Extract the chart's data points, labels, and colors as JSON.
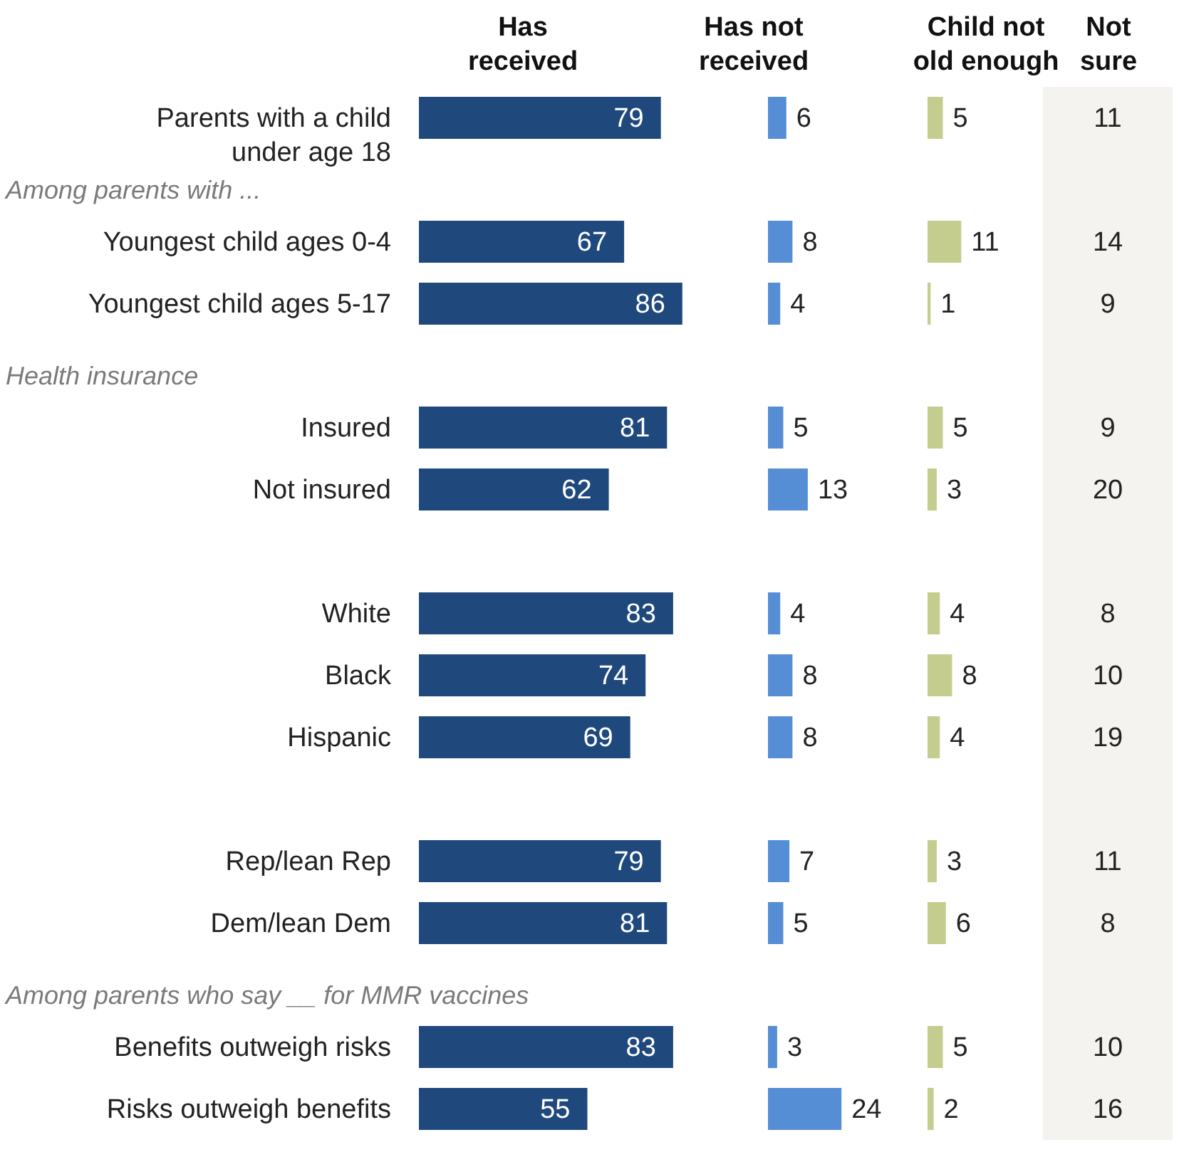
{
  "chart_data": [
    {
      "type": "bar",
      "orientation": "horizontal",
      "title": "Has\nreceived",
      "tick_labels": "y",
      "data_labels": true,
      "color": "#1f497d",
      "categories": [
        "Parents with a child\nunder age 18",
        null,
        "Youngest child ages 0-4",
        "Youngest child ages 5-17",
        null,
        "Insured",
        "Not insured",
        null,
        "White",
        "Black",
        "Hispanic",
        null,
        "Rep/lean Rep",
        "Dem/lean Dem",
        null,
        "Benefits outweigh risks",
        "Risks outweigh benefits"
      ],
      "values": [
        79,
        null,
        67,
        86,
        null,
        81,
        62,
        null,
        83,
        74,
        69,
        null,
        79,
        81,
        null,
        83,
        55
      ],
      "annotations": [
        "Among parents with ...",
        "Health insurance",
        "Among parents who say __ for MMR vaccines"
      ]
    },
    {
      "type": "bar",
      "orientation": "horizontal",
      "title": "Has not\nreceived",
      "tick_labels": false,
      "data_labels": true,
      "color": "#558ed5",
      "values": [
        6,
        null,
        8,
        4,
        null,
        5,
        13,
        null,
        4,
        8,
        8,
        null,
        7,
        5,
        null,
        3,
        24
      ]
    },
    {
      "type": "bar",
      "orientation": "horizontal",
      "title": "Child not\nold enough",
      "tick_labels": false,
      "data_labels": true,
      "color": "#c4cd8e",
      "values": [
        5,
        null,
        11,
        1,
        null,
        5,
        3,
        null,
        4,
        8,
        4,
        null,
        3,
        6,
        null,
        5,
        2
      ]
    },
    {
      "type": "other",
      "title": "Not\nsure",
      "data_labels": true,
      "values": [
        11,
        null,
        14,
        9,
        null,
        9,
        20,
        null,
        8,
        10,
        19,
        null,
        11,
        8,
        null,
        10,
        16
      ]
    }
  ]
}
